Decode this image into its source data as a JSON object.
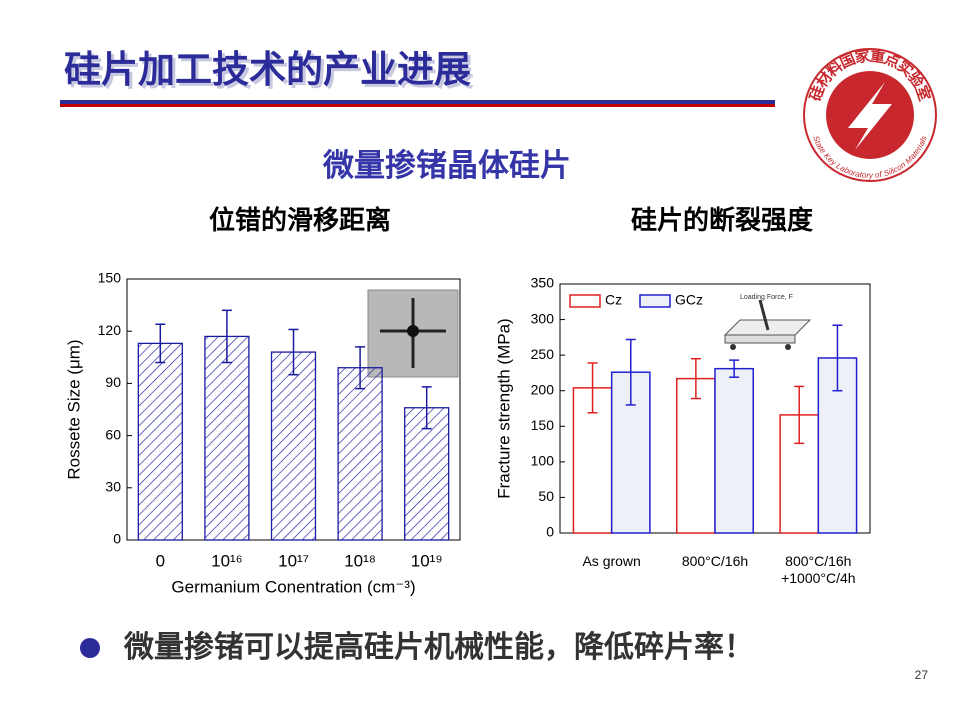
{
  "slide": {
    "title": "硅片加工技术的产业进展",
    "subtitle": "微量掺锗晶体硅片",
    "bullet": "微量掺锗可以提高硅片机械性能，降低碎片率！",
    "page_number": "27",
    "logo_cn": "硅材料国家重点实验室",
    "logo_en": "State Key Laboratory of Silicon Materials"
  },
  "chart_data": [
    {
      "type": "bar",
      "title": "位错的滑移距离",
      "categories": [
        "0",
        "10¹⁶",
        "10¹⁷",
        "10¹⁸",
        "10¹⁹"
      ],
      "values": [
        113,
        117,
        108,
        99,
        76
      ],
      "errors": [
        11,
        15,
        13,
        12,
        12
      ],
      "color": "#1a1aa0",
      "xlabel": "Germanium Conentration (cm⁻³)",
      "ylabel": "Rossete Size (μm)",
      "ylim": [
        0,
        150
      ],
      "yticks": [
        0,
        30,
        60,
        90,
        120,
        150
      ]
    },
    {
      "type": "grouped-bar",
      "title": "硅片的断裂强度",
      "categories": [
        "As grown",
        "800°C/16h",
        "800°C/16h\n+1000°C/4h"
      ],
      "series": [
        {
          "name": "Cz",
          "color": "#e02020",
          "fill": "#ffffff",
          "values": [
            204,
            217,
            166
          ],
          "errors": [
            35,
            28,
            40
          ]
        },
        {
          "name": "GCz",
          "color": "#2020d0",
          "fill": "#eef0f8",
          "values": [
            226,
            231,
            246
          ],
          "errors": [
            46,
            12,
            46
          ]
        }
      ],
      "ylabel": "Fracture strength (MPa)",
      "annotation": "Loading Force, F",
      "ylim": [
        0,
        350
      ],
      "yticks": [
        0,
        50,
        100,
        150,
        200,
        250,
        300,
        350
      ],
      "legend": "top-left"
    }
  ]
}
